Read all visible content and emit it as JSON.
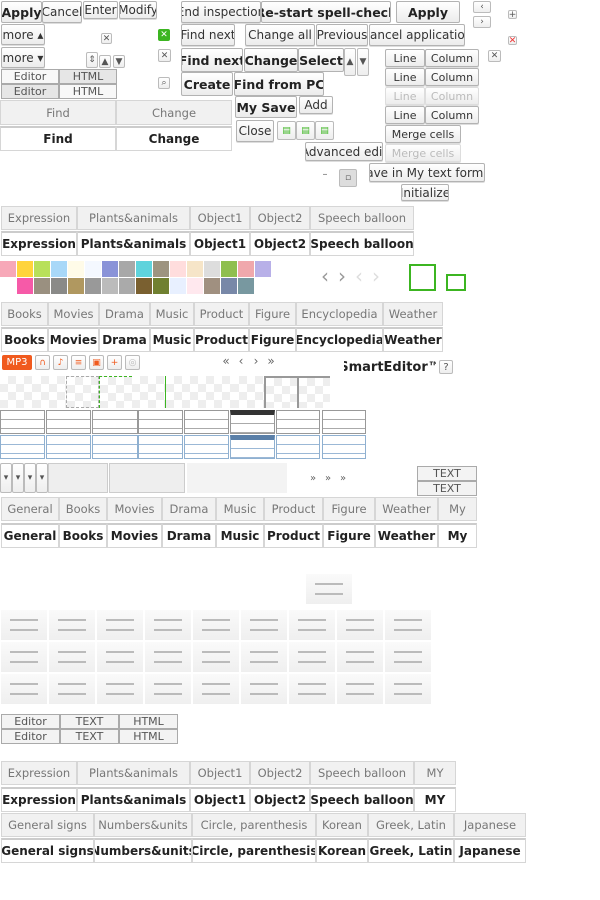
{
  "toolbar": {
    "apply": "Apply",
    "cancel": "Cancel",
    "enter": "Enter",
    "modify": "Modify",
    "more_up": "more ▴",
    "more_down": "more ▾"
  },
  "mode_toggle": [
    {
      "editor": "Editor",
      "html": "HTML"
    },
    {
      "editor": "Editor",
      "html": "HTML"
    }
  ],
  "find_tabs": {
    "normal": [
      "Find",
      "Change"
    ],
    "active": [
      "Find",
      "Change"
    ]
  },
  "spell": {
    "end": "End inspection",
    "restart": "Re-start spell-check",
    "apply": "Apply"
  },
  "find_replace": {
    "find_next": "Find next",
    "change_all": "Change all",
    "previous": "Previous",
    "cancel_application": "Cancel application",
    "find_next_bold": "Find next",
    "change": "Change",
    "select": "Select",
    "create": "Create",
    "find_from_pc": "Find from PC",
    "my_save": "My Save",
    "add": "Add",
    "close": "Close",
    "advanced_edit": "Advanced edit",
    "save_format": "Save in My text format",
    "initialize": "Initialize"
  },
  "table_edit": {
    "rows": [
      [
        "Line",
        "Column"
      ],
      [
        "Line",
        "Column"
      ],
      [
        "Line",
        "Column"
      ],
      [
        "Line",
        "Column"
      ]
    ],
    "merge": "Merge cells",
    "merge_disabled": "Merge cells"
  },
  "emoticon_tabs": {
    "labels": [
      "Expression",
      "Plants&animals",
      "Object1",
      "Object2",
      "Speech balloon"
    ]
  },
  "palette_colors": [
    "#f7a8b8",
    "#ffd43b",
    "#b8e05a",
    "#a8d8f8",
    "#fffbe8",
    "#f4f8ff",
    "#8a93d8",
    "#a8a8a8",
    "#5fd3dc",
    "#9d9480",
    "#fdd",
    "#f6e5c8",
    "#ddd",
    "#8fbf4f",
    "#f0a8ac",
    "#b8b0e8",
    "#fff",
    "#f65aa8",
    "#9a9080",
    "#8a8a88",
    "#b09860",
    "#999",
    "#bbb",
    "#aaa",
    "#7a6030",
    "#708030",
    "#e8f0ff",
    "#ffe8ee",
    "#a09080",
    "#7888a8",
    "#7898a0",
    "#fff"
  ],
  "media_tabs": {
    "labels": [
      "Books",
      "Movies",
      "Drama",
      "Music",
      "Product",
      "Figure",
      "Encyclopedia",
      "Weather"
    ]
  },
  "media": {
    "mp3": "MP3",
    "nav": [
      "«",
      "‹",
      "›",
      "»"
    ],
    "brand": "SmartEditor™",
    "help": "?"
  },
  "text_toggle": [
    "TEXT",
    "TEXT"
  ],
  "category_tabs": {
    "labels": [
      "General",
      "Books",
      "Movies",
      "Drama",
      "Music",
      "Product",
      "Figure",
      "Weather",
      "My"
    ]
  },
  "mode_toggle3": [
    [
      "Editor",
      "TEXT",
      "HTML"
    ],
    [
      "Editor",
      "TEXT",
      "HTML"
    ]
  ],
  "emoticon_tabs2": {
    "labels": [
      "Expression",
      "Plants&animals",
      "Object1",
      "Object2",
      "Speech balloon",
      "MY"
    ]
  },
  "symbol_tabs": {
    "labels": [
      "General signs",
      "Numbers&units",
      "Circle, parenthesis",
      "Korean",
      "Greek, Latin",
      "Japanese"
    ]
  },
  "colors": {
    "green": "#3cb521",
    "mp3_orange": "#f05a1e",
    "selected_blue": "#5a7fa8"
  }
}
